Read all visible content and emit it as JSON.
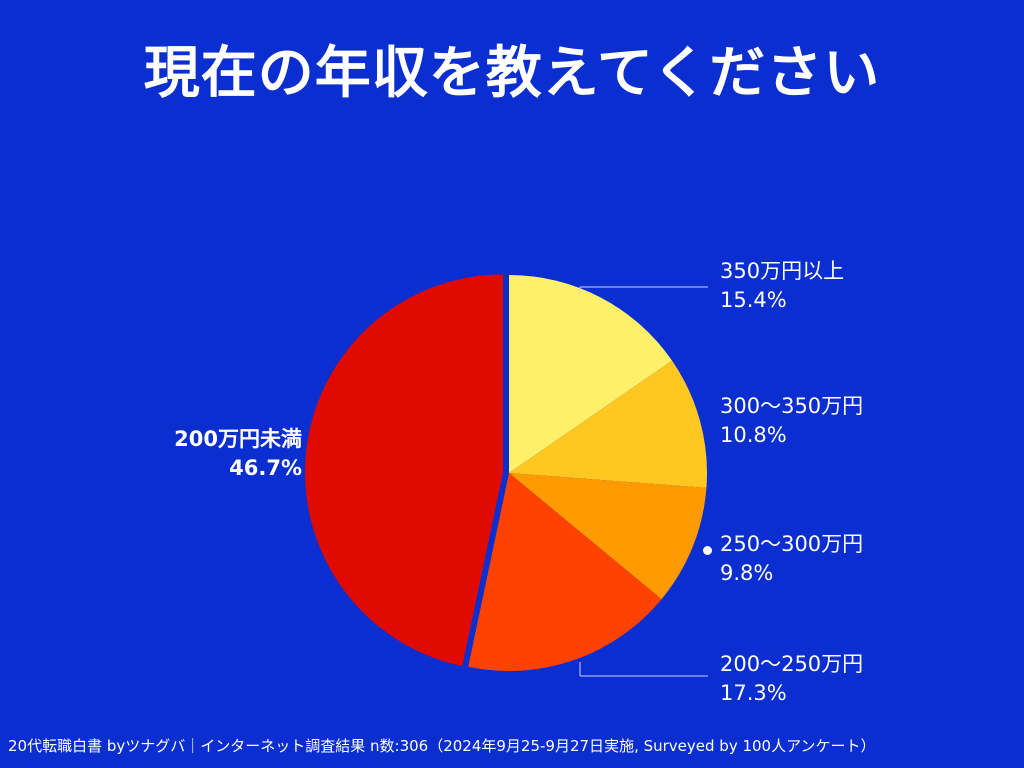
{
  "title": "現在の年収を教えてください",
  "footer": "20代転職白書 byツナグバ｜インターネット調査結果 n数:306（2024年9月25-9月27日実施, Surveyed by 100人アンケート）",
  "colors": {
    "background": "#0A2ECF",
    "text": "#FFFFFF"
  },
  "chart_data": {
    "type": "pie",
    "title": "現在の年収を教えてください",
    "unit": "%",
    "slices": [
      {
        "label": "350万円以上",
        "value": 15.4,
        "value_label": "15.4%",
        "color": "#FFF06A"
      },
      {
        "label": "300〜350万円",
        "value": 10.8,
        "value_label": "10.8%",
        "color": "#FFC820"
      },
      {
        "label": "250〜300万円",
        "value": 9.8,
        "value_label": "9.8%",
        "color": "#FF9A00"
      },
      {
        "label": "200〜250万円",
        "value": 17.3,
        "value_label": "17.3%",
        "color": "#FF4200"
      },
      {
        "label": "200万円未満",
        "value": 46.7,
        "value_label": "46.7%",
        "color": "#E00A00"
      }
    ],
    "start_angle_deg": 0,
    "direction": "clockwise",
    "legend": "none"
  }
}
